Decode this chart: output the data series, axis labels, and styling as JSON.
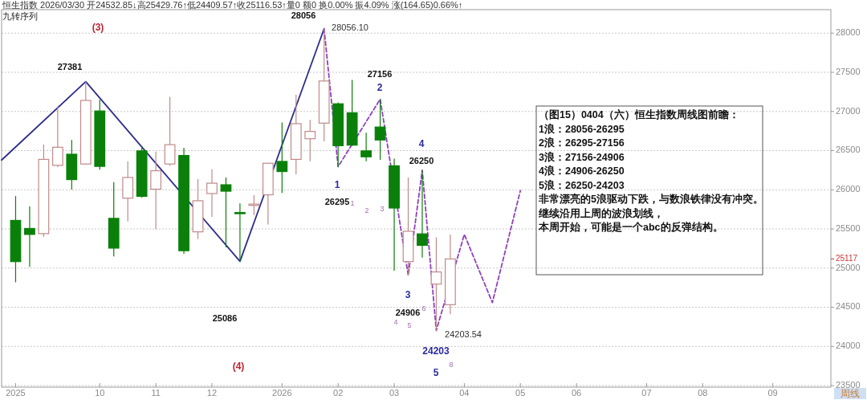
{
  "chart_data": {
    "type": "candlestick",
    "title": "恒生指数 2026/03/30 开24532.85↓高25429.76↑低24409.57↑收25116.53↑量0 额0 换0.00% 振4.09% 涨(164.65)0.66%↑",
    "subtitle": "九转序列",
    "x": [
      "2025-08-25",
      "2025-09-01",
      "2025-09-08",
      "2025-09-15",
      "2025-09-22",
      "2025-09-29",
      "2025-10-06",
      "2025-10-13",
      "2025-10-20",
      "2025-10-27",
      "2025-11-03",
      "2025-11-10",
      "2025-11-17",
      "2025-11-24",
      "2025-12-01",
      "2025-12-08",
      "2025-12-15",
      "2025-12-22",
      "2025-12-29",
      "2026-01-05",
      "2026-01-12",
      "2026-01-19",
      "2026-01-26",
      "2026-02-02",
      "2026-02-09",
      "2026-02-16",
      "2026-02-23",
      "2026-03-02",
      "2026-03-09",
      "2026-03-16",
      "2026-03-23",
      "2026-03-30"
    ],
    "ohlc": [
      [
        25609,
        25919,
        24819,
        25083
      ],
      [
        25506,
        25787,
        25017,
        25430
      ],
      [
        25440,
        26576,
        25397,
        26388
      ],
      [
        26312,
        27065,
        26289,
        26543
      ],
      [
        26454,
        26636,
        26002,
        26130
      ],
      [
        26329,
        27381,
        26320,
        27141
      ],
      [
        27006,
        27148,
        26256,
        26299
      ],
      [
        25635,
        26098,
        25150,
        25255
      ],
      [
        25893,
        26362,
        25595,
        26157
      ],
      [
        26497,
        26553,
        25900,
        25916
      ],
      [
        26008,
        26487,
        25496,
        26243
      ],
      [
        26329,
        27187,
        26306,
        26576
      ],
      [
        26438,
        26537,
        25183,
        25222
      ],
      [
        25463,
        26137,
        25371,
        25860
      ],
      [
        25952,
        26263,
        25655,
        26084
      ],
      [
        26064,
        26157,
        25265,
        25982
      ],
      [
        25710,
        25827,
        25086,
        25695
      ],
      [
        25800,
        25932,
        25675,
        25817
      ],
      [
        25936,
        26345,
        25556,
        26339
      ],
      [
        26362,
        26860,
        25959,
        26233
      ],
      [
        26388,
        27214,
        26197,
        26844
      ],
      [
        26652,
        26893,
        26365,
        26745
      ],
      [
        26851,
        28056.1,
        26619,
        27389
      ],
      [
        27098,
        27115,
        26295,
        26563
      ],
      [
        26983,
        27402,
        26560,
        26570
      ],
      [
        26497,
        26728,
        26365,
        26421
      ],
      [
        26801,
        27156,
        26382,
        26636
      ],
      [
        26306,
        26398,
        24968,
        25767
      ],
      [
        25083,
        26157,
        24906,
        25470
      ],
      [
        25437,
        26250,
        25133,
        25291
      ],
      [
        24796,
        25391,
        24203.54,
        24951
      ],
      [
        24532.85,
        25429.76,
        24409.57,
        25116.53
      ]
    ],
    "colors": [
      "#0a800a",
      "#0a800a",
      "#c08a8a",
      "#c08a8a",
      "#0a800a",
      "#c08a8a",
      "#0a800a",
      "#0a800a",
      "#c08a8a",
      "#0a800a",
      "#c08a8a",
      "#c08a8a",
      "#0a800a",
      "#c08a8a",
      "#c08a8a",
      "#0a800a",
      "#0a800a",
      "#c08a8a",
      "#c08a8a",
      "#0a800a",
      "#c08a8a",
      "#c08a8a",
      "#c08a8a",
      "#0a800a",
      "#0a800a",
      "#0a800a",
      "#0a800a",
      "#0a800a",
      "#c08a8a",
      "#0a800a",
      "#c08a8a",
      "#c08a8a"
    ],
    "series": [
      {
        "type": "line",
        "color": "#2c2c8c",
        "line_style": "solid",
        "x": [
          "2025-08-18",
          "2025-09-29",
          "2025-12-15",
          "2026-01-26"
        ],
        "values": [
          26380,
          27381,
          25086,
          28056
        ]
      },
      {
        "type": "line",
        "color": "#9040c0",
        "line_style": "dashed",
        "x": [
          "2026-01-26",
          "2026-02-02",
          "2026-02-23",
          "2026-03-09",
          "2026-03-16",
          "2026-03-23",
          "2026-04-06",
          "2026-04-20",
          "2026-05-04"
        ],
        "values": [
          28056,
          26295,
          27156,
          24906,
          26250,
          24203,
          25430,
          24560,
          25990
        ]
      }
    ],
    "xlim": [
      "2025-08-18",
      "2026-10-06"
    ],
    "xticks": [
      {
        "value": "2025-08-25",
        "label": "2025"
      },
      {
        "value": "2025-10-06",
        "label": "10"
      },
      {
        "value": "2025-11-03",
        "label": "11"
      },
      {
        "value": "2025-12-01",
        "label": "12"
      },
      {
        "value": "2026-01-05",
        "label": "2026"
      },
      {
        "value": "2026-02-02",
        "label": "02"
      },
      {
        "value": "2026-03-02",
        "label": "03"
      },
      {
        "value": "2026-04-06",
        "label": "04"
      },
      {
        "value": "2026-05-04",
        "label": "05"
      },
      {
        "value": "2026-06-01",
        "label": "06"
      },
      {
        "value": "2026-07-06",
        "label": "07"
      },
      {
        "value": "2026-08-03",
        "label": "08"
      },
      {
        "value": "2026-09-07",
        "label": "09"
      }
    ],
    "ylim": [
      23480,
      28300
    ],
    "yticks": [
      23500,
      24000,
      24500,
      {
        "value": 25117,
        "label": "25117"
      },
      25000,
      25500,
      26000,
      26500,
      27000,
      27500,
      28000
    ],
    "grid": "y",
    "annotations": [
      "(3)",
      "27381",
      "25086",
      "(4)",
      "28056",
      "28056.10",
      "27156",
      "2",
      "1",
      "26295",
      "1",
      "2",
      "3",
      "4",
      "26250",
      "3",
      "24906",
      "4",
      "5",
      "6",
      "24203.54",
      "24203",
      "5",
      "8",
      "（图15）0404（六）恒生指数周线图前瞻：",
      "1浪：28056-26295",
      "2浪：26295-27156",
      "3浪：27156-24906",
      "4浪：24906-26250",
      "5浪：26250-24203",
      "非常漂亮的5浪驱动下跌，与数浪铁律没有冲突。",
      "继续沿用上周的波浪划线，",
      "本周开始，可能是一个abc的反弹结构。",
      "周线"
    ]
  }
}
